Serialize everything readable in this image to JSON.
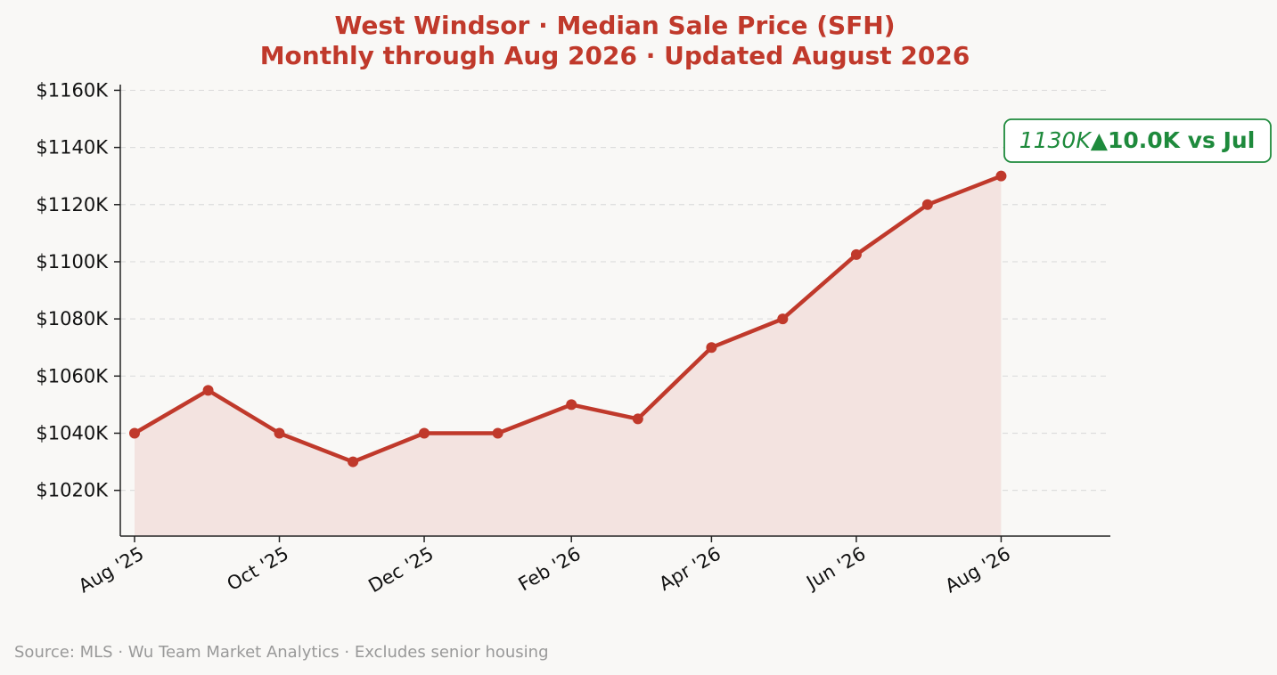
{
  "chart_data": {
    "type": "area",
    "title": "West Windsor  ·  Median Sale Price (SFH)",
    "subtitle": "Monthly through Aug 2026  ·  Updated August 2026",
    "xlabel": "",
    "ylabel": "",
    "x": [
      "2025-08",
      "2025-09",
      "2025-10",
      "2025-11",
      "2025-12",
      "2026-01",
      "2026-02",
      "2026-03",
      "2026-04",
      "2026-05",
      "2026-06",
      "2026-07",
      "2026-08"
    ],
    "values": [
      1040,
      1055,
      1040,
      1030,
      1040,
      1040,
      1050,
      1045,
      1070,
      1080,
      1102.5,
      1120,
      1130
    ],
    "x_tick_labels": [
      {
        "x": "2025-08",
        "label": "Aug '25"
      },
      {
        "x": "2025-10",
        "label": "Oct '25"
      },
      {
        "x": "2025-12",
        "label": "Dec '25"
      },
      {
        "x": "2026-02",
        "label": "Feb '26"
      },
      {
        "x": "2026-04",
        "label": "Apr '26"
      },
      {
        "x": "2026-06",
        "label": "Jun '26"
      },
      {
        "x": "2026-08",
        "label": "Aug '26"
      }
    ],
    "y_ticks": [
      1020,
      1040,
      1060,
      1080,
      1100,
      1120,
      1140,
      1160
    ],
    "y_tick_labels": [
      "$1020K",
      "$1040K",
      "$1060K",
      "$1080K",
      "$1100K",
      "$1120K",
      "$1140K",
      "$1160K"
    ],
    "ylim": [
      1004,
      1162
    ],
    "xlim": [
      "2025-07-26",
      "2026-09-16"
    ],
    "grid": "horizontal dashed",
    "legend": "none",
    "annotation": {
      "value_text": "1130K",
      "change_text": "▲10.0K vs Jul"
    },
    "source_note": "Source: MLS · Wu Team Market Analytics · Excludes senior housing",
    "colors": {
      "line": "#c0392b",
      "fill": "#f3e3e0",
      "title": "#c0392b",
      "annotation": "#1e8a3c",
      "grid": "#dddddd",
      "background": "#f9f8f6"
    }
  }
}
